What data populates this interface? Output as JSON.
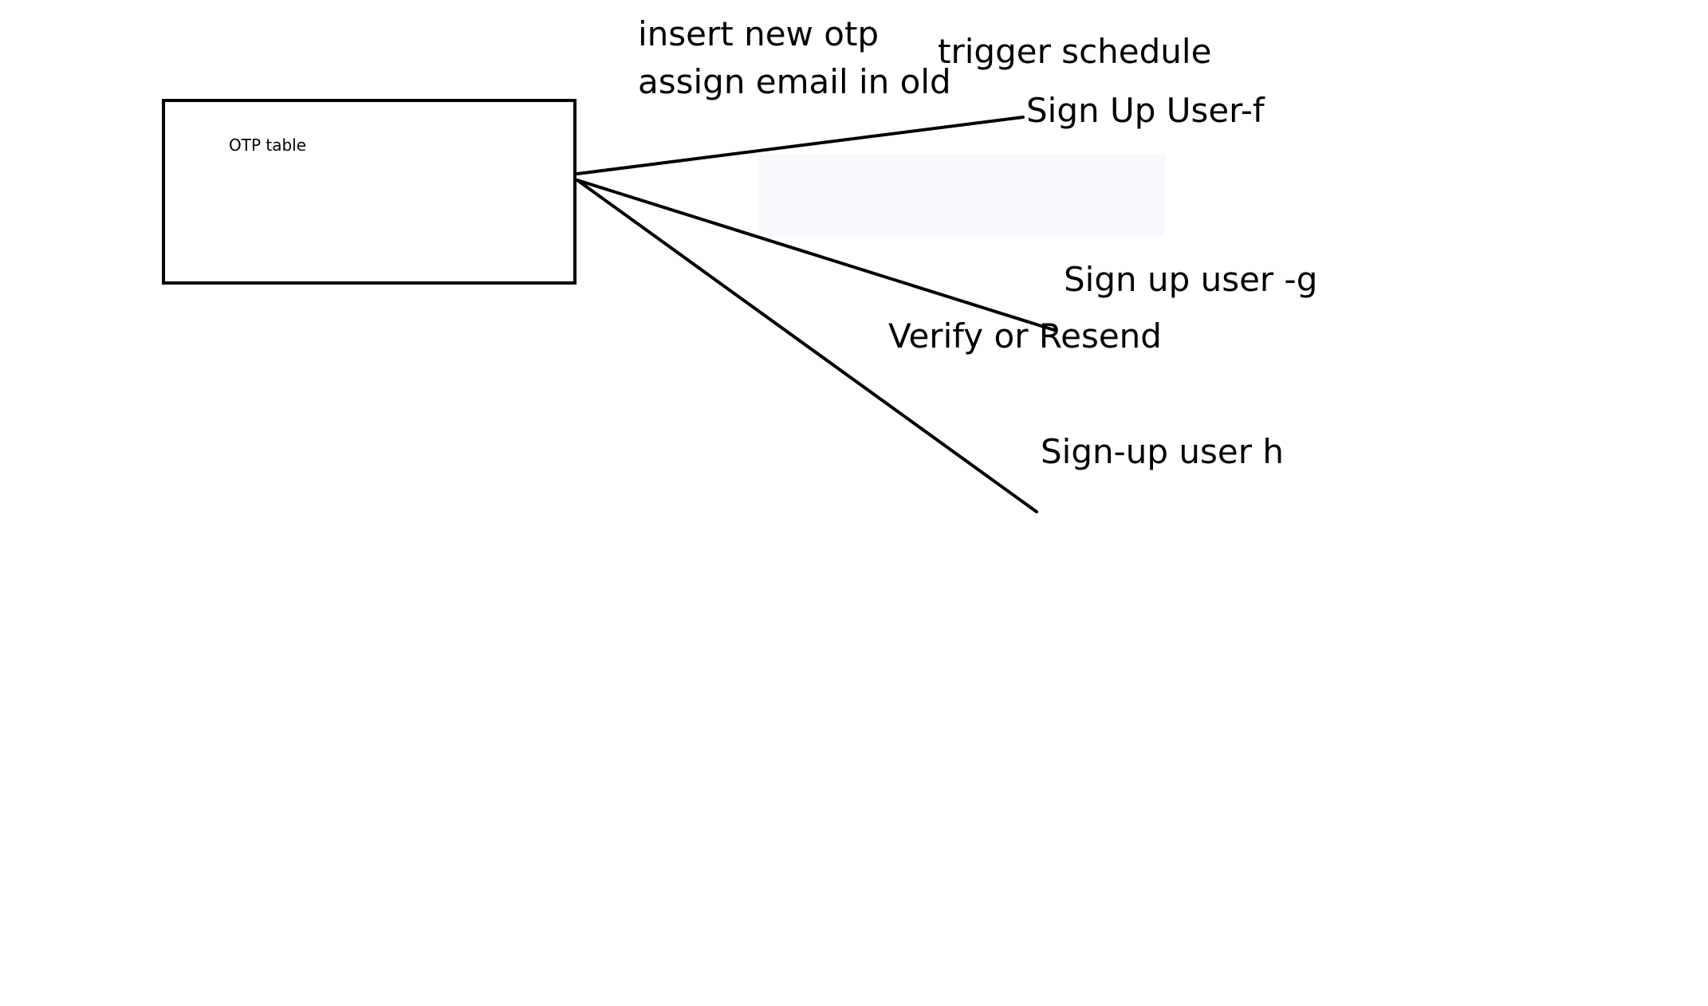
{
  "otp_table": {
    "label": "OTP table"
  },
  "labels": {
    "insert_new_otp": "insert new otp",
    "assign_email": "assign email in old",
    "trigger_schedule": "trigger schedule",
    "sign_up_user_f": "Sign Up User-f",
    "sign_up_user_g": "Sign up user -g",
    "verify_or_resend": "Verify or Resend",
    "sign_up_user_h": "Sign-up user h"
  },
  "colors": {
    "line": "#000000",
    "background": "#ffffff",
    "highlight": "#f7f9fc"
  }
}
